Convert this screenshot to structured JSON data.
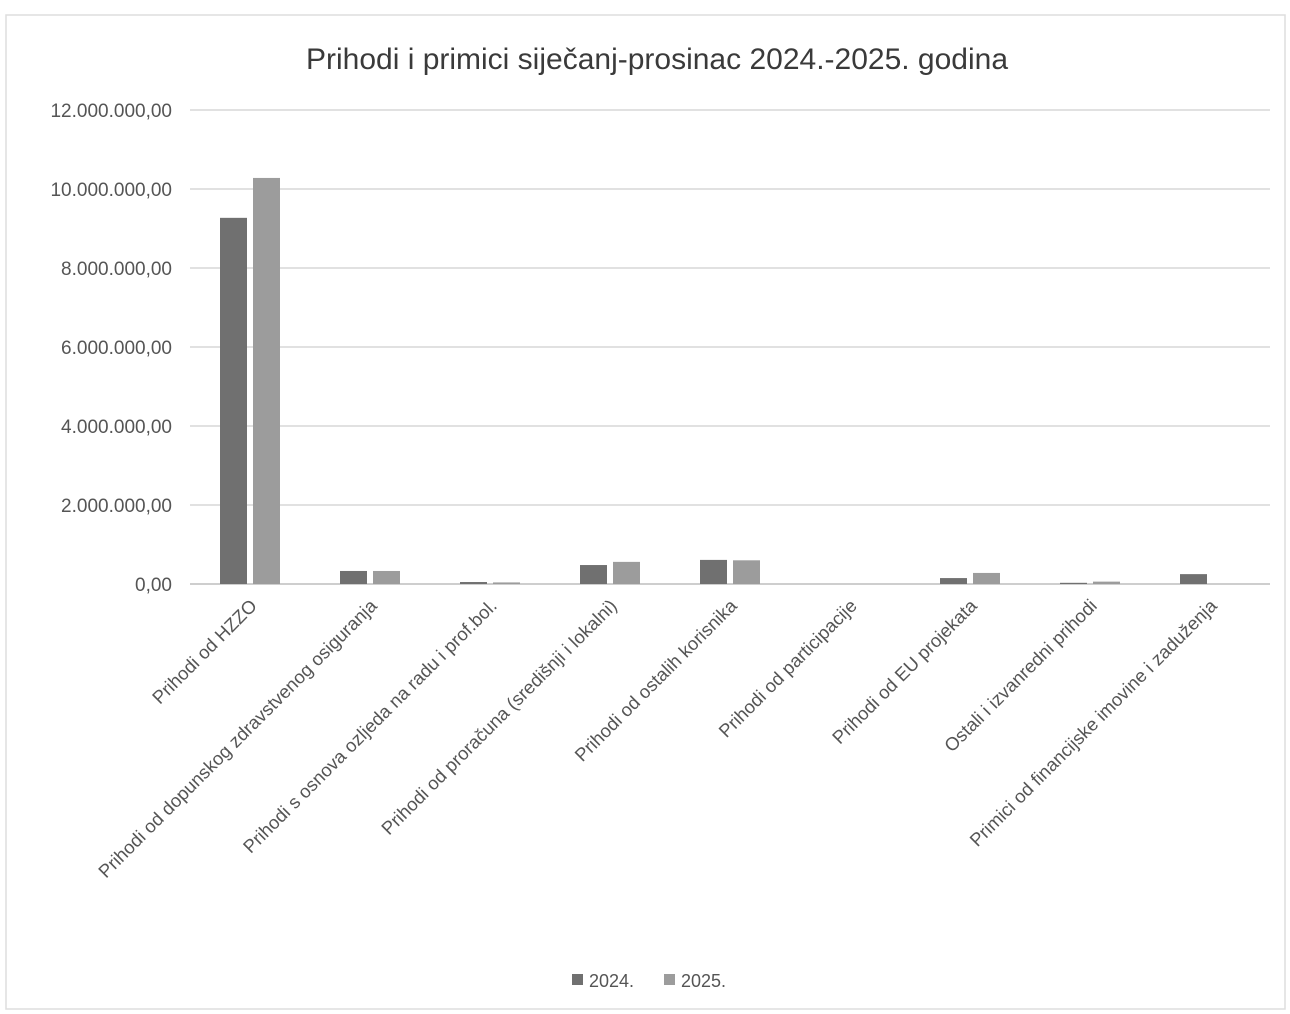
{
  "chart_data": {
    "type": "bar",
    "title": "Prihodi i primici siječanj-prosinac 2024.-2025. godina",
    "categories": [
      "Prihodi od HZZO",
      "Prihodi od dopunskog zdravstvenog osiguranja",
      "Prihodi s osnova ozljeda na radu i prof.bol.",
      "Prihodi od proračuna (središnji i lokalni)",
      "Prihodi od ostalih korisnika",
      "Prihodi od participacije",
      "Prihodi od EU projekata",
      "Ostali i izvanredni prihodi",
      "Primici od financijske imovine i zaduženja"
    ],
    "series": [
      {
        "name": "2024.",
        "color": "#707070",
        "values": [
          9270000,
          330000,
          50000,
          480000,
          610000,
          0,
          150000,
          30000,
          250000
        ]
      },
      {
        "name": "2025.",
        "color": "#9c9c9c",
        "values": [
          10280000,
          330000,
          40000,
          560000,
          600000,
          0,
          280000,
          60000,
          0
        ]
      }
    ],
    "ylim": [
      0,
      12000000
    ],
    "yticks": [
      0,
      2000000,
      4000000,
      6000000,
      8000000,
      10000000,
      12000000
    ],
    "ytick_labels": [
      "0,00",
      "2.000.000,00",
      "4.000.000,00",
      "6.000.000,00",
      "8.000.000,00",
      "10.000.000,00",
      "12.000.000,00"
    ],
    "grid": true,
    "legend": "bottom-center"
  }
}
